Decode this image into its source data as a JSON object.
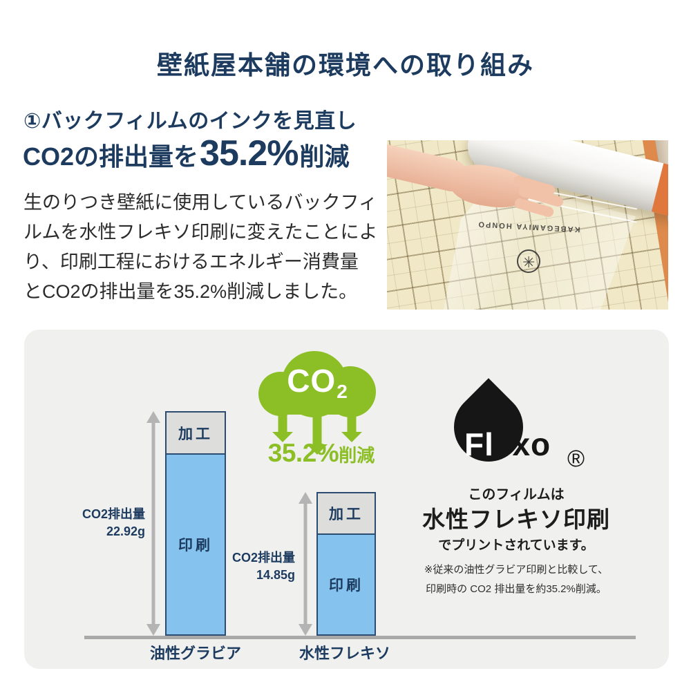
{
  "colors": {
    "navy": "#1c3b5f",
    "green": "#8cbe25",
    "bar_blue": "#85c2ee",
    "bar_gray": "#dddddb",
    "panel_bg": "#f0f0ef",
    "arrow_gray": "#b4b4b4",
    "logo_black": "#161616"
  },
  "header": {
    "title": "壁紙屋本舗の環境への取り組み"
  },
  "intro": {
    "step_heading": "①バックフィルムのインクを見直し",
    "result_prefix": "CO2の排出量を",
    "result_value": "35.2%",
    "result_suffix": "削減",
    "body_lines": [
      "生のりつき壁紙に使用しているバックフィ",
      "ルムを水性フレキソ印刷に変えたことによ",
      "り、印刷工程におけるエネルギー消費量",
      "とCO2の排出量を35.2%削減しました。"
    ]
  },
  "photo": {
    "film_text": "KABEGAMIYA HONPO",
    "film_logo_glyph": "✳"
  },
  "diagram": {
    "co2_cloud": {
      "text_main": "CO",
      "text_sub": "2"
    },
    "reduction": {
      "value": "35.2%",
      "suffix": "削減"
    },
    "bars": [
      {
        "category": "油性グラビア",
        "top_label": "加工",
        "bottom_label": "印刷",
        "measure_label": "CO2排出量",
        "measure_value": "22.92g"
      },
      {
        "category": "水性フレキソ",
        "top_label": "加工",
        "bottom_label": "印刷",
        "measure_label": "CO2排出量",
        "measure_value": "14.85g"
      }
    ],
    "flexo": {
      "wordmark_overlap": "Fl",
      "wordmark_rest": "exo",
      "registered": "®",
      "caption_small": "このフィルムは",
      "caption_large": "水性フレキソ印刷",
      "caption_tail": "でプリントされています。",
      "note_line1": "※従来の油性グラビア印刷と比較して、",
      "note_line2": "印刷時の CO2 排出量を約35.2%削減。"
    }
  },
  "chart_data": {
    "type": "bar",
    "stacked": true,
    "unit": "g",
    "categories": [
      "油性グラビア",
      "水性フレキソ"
    ],
    "series": [
      {
        "name": "加工",
        "values": [
          4.3,
          4.3
        ]
      },
      {
        "name": "印刷",
        "values": [
          18.62,
          10.55
        ]
      }
    ],
    "totals": [
      {
        "category": "油性グラビア",
        "label": "CO2排出量",
        "value": 22.92
      },
      {
        "category": "水性フレキソ",
        "label": "CO2排出量",
        "value": 14.85
      }
    ],
    "annotations": [
      "CO2",
      "35.2%削減"
    ],
    "legend": false,
    "baseline_axis": true
  }
}
